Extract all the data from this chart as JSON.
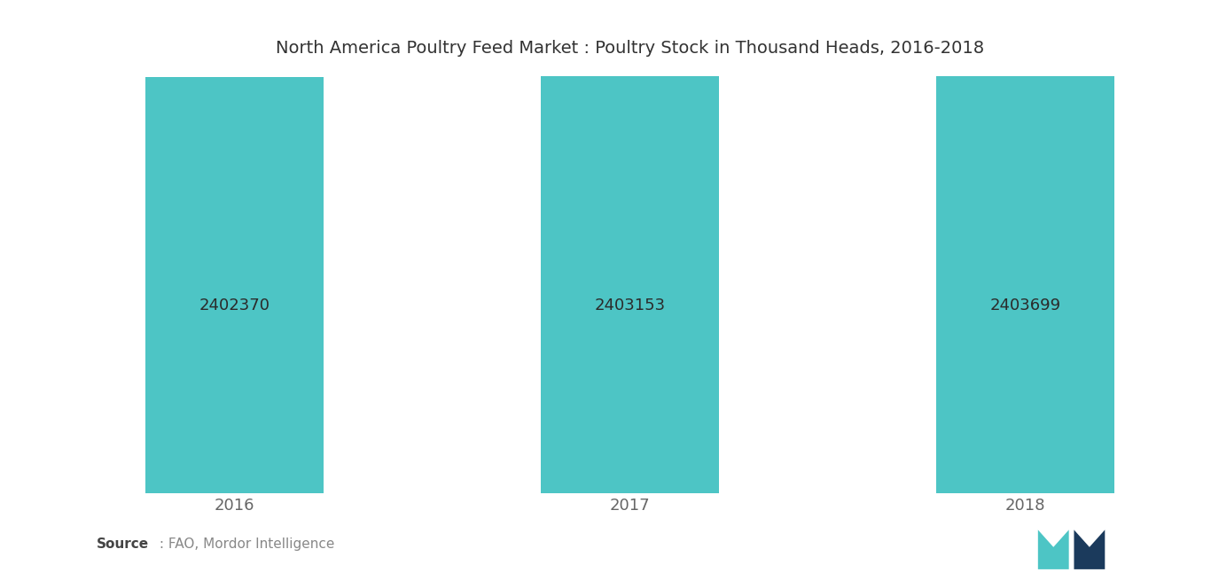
{
  "title": "North America Poultry Feed Market : Poultry Stock in Thousand Heads, 2016-2018",
  "categories": [
    "2016",
    "2017",
    "2018"
  ],
  "values": [
    2402370,
    2403153,
    2403699
  ],
  "bar_color": "#4DC5C5",
  "label_color": "#2b2b2b",
  "background_color": "#ffffff",
  "bar_label_fontsize": 13,
  "title_fontsize": 14,
  "source_bold": "Source",
  "source_normal": " : FAO, Mordor Intelligence",
  "ylim": [
    0,
    2410000
  ],
  "xlabel_fontsize": 13,
  "bar_width": 0.45
}
